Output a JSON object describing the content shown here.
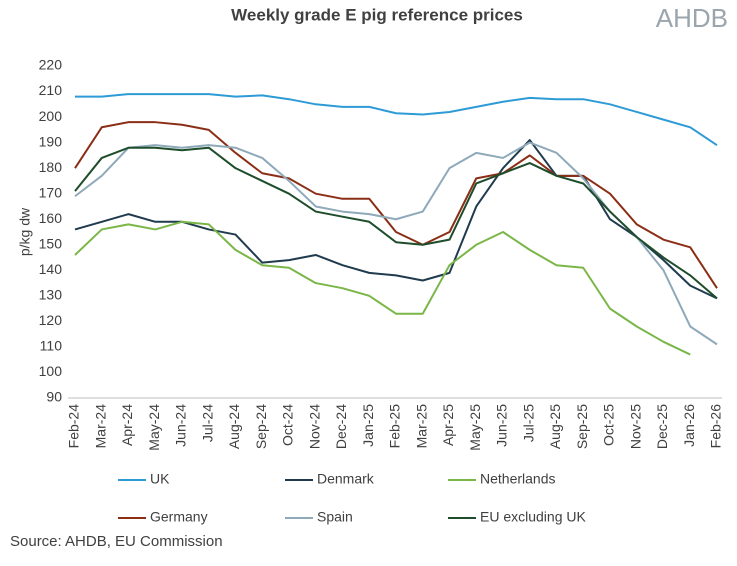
{
  "chart_data": {
    "type": "line",
    "title": "Weekly grade E pig reference prices",
    "logo": "AHDB",
    "ylabel": "p/kg dw",
    "source": "Source: AHDB, EU Commission",
    "categories": [
      "Feb-24",
      "Mar-24",
      "Apr-24",
      "May-24",
      "Jun-24",
      "Jul-24",
      "Aug-24",
      "Sep-24",
      "Oct-24",
      "Nov-24",
      "Dec-24",
      "Jan-25",
      "Feb-25",
      "Mar-25",
      "Apr-25",
      "May-25",
      "Jun-25",
      "Jul-25",
      "Aug-25",
      "Sep-25",
      "Oct-25",
      "Nov-25",
      "Dec-25",
      "Jan-26",
      "Feb-26"
    ],
    "ylim": [
      90,
      220
    ],
    "yticks": [
      90,
      100,
      110,
      120,
      130,
      140,
      150,
      160,
      170,
      180,
      190,
      200,
      210,
      220
    ],
    "series": [
      {
        "name": "UK",
        "color": "#2e9bd6",
        "values": [
          208,
          208,
          209,
          209,
          209,
          209,
          208,
          208.5,
          207,
          205,
          204,
          204,
          201.5,
          201,
          202,
          204,
          206,
          207.5,
          207,
          207,
          205,
          202,
          199,
          196,
          189
        ]
      },
      {
        "name": "Denmark",
        "color": "#1f3b4d",
        "values": [
          156,
          159,
          162,
          159,
          159,
          156,
          154,
          143,
          144,
          146,
          142,
          139,
          138,
          136,
          139,
          165,
          180,
          191,
          177,
          177,
          160,
          153,
          144,
          134,
          129
        ]
      },
      {
        "name": "Netherlands",
        "color": "#7ab648",
        "values": [
          146,
          156,
          158,
          156,
          159,
          158,
          148,
          142,
          141,
          135,
          133,
          130,
          123,
          123,
          142,
          150,
          155,
          148,
          142,
          141,
          125,
          118,
          112,
          107,
          null
        ]
      },
      {
        "name": "Germany",
        "color": "#8b2e16",
        "values": [
          180,
          196,
          198,
          198,
          197,
          195,
          186,
          178,
          176,
          170,
          168,
          168,
          155,
          150,
          155,
          176,
          178,
          185,
          177,
          177,
          170,
          158,
          152,
          149,
          133
        ]
      },
      {
        "name": "Spain",
        "color": "#8ea9b9",
        "values": [
          169,
          177,
          188,
          189,
          188,
          189,
          188,
          184,
          175,
          165,
          163,
          162,
          160,
          163,
          180,
          186,
          184,
          190,
          186,
          176,
          163,
          153,
          140,
          118,
          111
        ]
      },
      {
        "name": "EU excluding UK",
        "color": "#1e4d2b",
        "values": [
          171,
          184,
          188,
          188,
          187,
          188,
          180,
          175,
          170,
          163,
          161,
          159,
          151,
          150,
          152,
          174,
          178,
          182,
          177,
          174,
          163,
          153,
          145,
          138,
          129
        ]
      }
    ]
  }
}
